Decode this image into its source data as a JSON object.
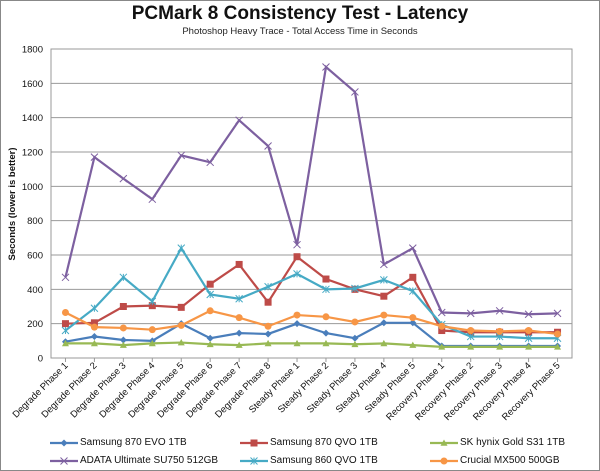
{
  "chart_data": {
    "type": "line",
    "title": "PCMark 8 Consistency Test - Latency",
    "subtitle": "Photoshop Heavy Trace - Total Access Time in Seconds",
    "xlabel": "",
    "ylabel": "Seconds (lower is better)",
    "ylim": [
      0,
      1800
    ],
    "yticks": [
      0,
      200,
      400,
      600,
      800,
      1000,
      1200,
      1400,
      1600,
      1800
    ],
    "grid": true,
    "legend_position": "bottom",
    "categories": [
      "Degrade Phase 1",
      "Degrade Phase 2",
      "Degrade Phase 3",
      "Degrade Phase 4",
      "Degrade Phase 5",
      "Degrade Phase 6",
      "Degrade Phase 7",
      "Degrade Phase 8",
      "Steady Phase 1",
      "Steady Phase 2",
      "Steady Phase 3",
      "Steady Phase 4",
      "Steady Phase 5",
      "Recovery Phase 1",
      "Recovery Phase 2",
      "Recovery Phase 3",
      "Recovery Phase 4",
      "Recovery Phase 5"
    ],
    "series": [
      {
        "name": "Samsung 870 EVO 1TB",
        "color": "#4a7ebb",
        "marker": "diamond",
        "values": [
          95,
          125,
          105,
          100,
          200,
          115,
          145,
          140,
          200,
          145,
          115,
          205,
          205,
          70,
          70,
          70,
          70,
          70
        ]
      },
      {
        "name": "Samsung 870 QVO 1TB",
        "color": "#be4b48",
        "marker": "square",
        "values": [
          200,
          205,
          300,
          305,
          295,
          430,
          545,
          325,
          590,
          460,
          400,
          360,
          470,
          160,
          150,
          150,
          150,
          150
        ]
      },
      {
        "name": "SK hynix Gold S31 1TB",
        "color": "#98b954",
        "marker": "triangle",
        "values": [
          85,
          85,
          75,
          85,
          90,
          80,
          75,
          85,
          85,
          85,
          80,
          85,
          75,
          65,
          65,
          65,
          65,
          65
        ]
      },
      {
        "name": "ADATA Ultimate SU750 512GB",
        "color": "#7d60a0",
        "marker": "x",
        "values": [
          470,
          1170,
          1045,
          925,
          1180,
          1140,
          1385,
          1235,
          660,
          1695,
          1550,
          545,
          640,
          265,
          260,
          275,
          255,
          260
        ]
      },
      {
        "name": "Samsung 860 QVO 1TB",
        "color": "#46aac5",
        "marker": "star",
        "values": [
          160,
          290,
          470,
          330,
          640,
          370,
          345,
          415,
          490,
          400,
          405,
          455,
          390,
          195,
          125,
          125,
          115,
          115
        ]
      },
      {
        "name": "Crucial MX500 500GB",
        "color": "#f79646",
        "marker": "circle",
        "values": [
          265,
          180,
          175,
          165,
          190,
          275,
          235,
          185,
          250,
          240,
          210,
          250,
          235,
          185,
          160,
          155,
          160,
          140
        ]
      }
    ]
  }
}
